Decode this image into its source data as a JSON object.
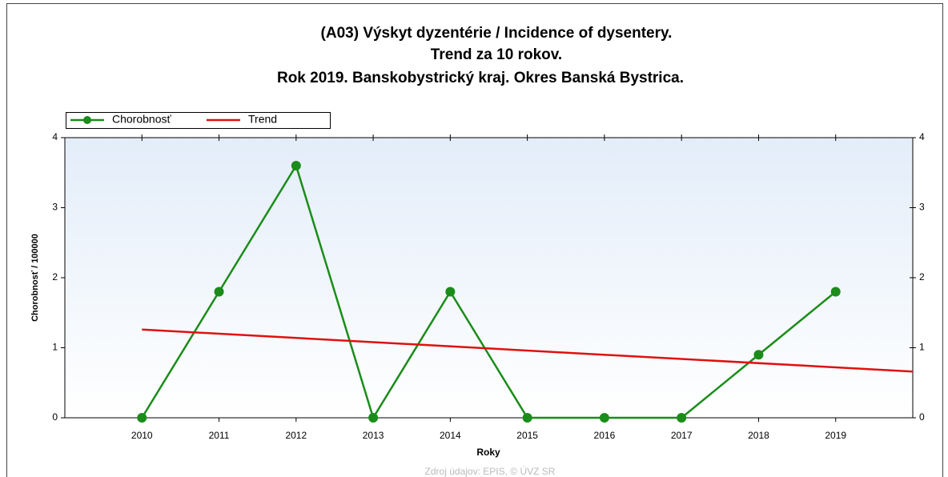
{
  "chart_data": {
    "type": "line",
    "title": [
      "(A03) Výskyt dyzentérie / Incidence of dysentery.",
      "Trend za 10 rokov.",
      "Rok 2019. Banskobystrický kraj. Okres Banská Bystrica."
    ],
    "x_label": "Roky",
    "y_label": "Chorobnosť / 100000",
    "footer": "Zdroj údajov: EPIS, © ÚVZ SR",
    "x": [
      2010,
      2011,
      2012,
      2013,
      2014,
      2015,
      2016,
      2017,
      2018,
      2019
    ],
    "series": [
      {
        "name": "Chorobnosť",
        "color": "#1a8c1a",
        "markers": true,
        "values": [
          0,
          1.8,
          3.6,
          0,
          1.8,
          0,
          0,
          0,
          0.9,
          1.8
        ]
      },
      {
        "name": "Trend",
        "color": "#e01010",
        "markers": false,
        "x": [
          2010,
          2020
        ],
        "values": [
          1.26,
          0.66
        ]
      }
    ],
    "xlim": [
      2009,
      2020
    ],
    "xticks": [
      2010,
      2011,
      2012,
      2013,
      2014,
      2015,
      2016,
      2017,
      2018,
      2019
    ],
    "ylim": [
      0,
      4
    ],
    "yticks": [
      0,
      1,
      2,
      3,
      4
    ],
    "y2lim": [
      0,
      4
    ],
    "y2ticks": [
      0,
      1,
      2,
      3,
      4
    ],
    "legend": "top-left"
  }
}
